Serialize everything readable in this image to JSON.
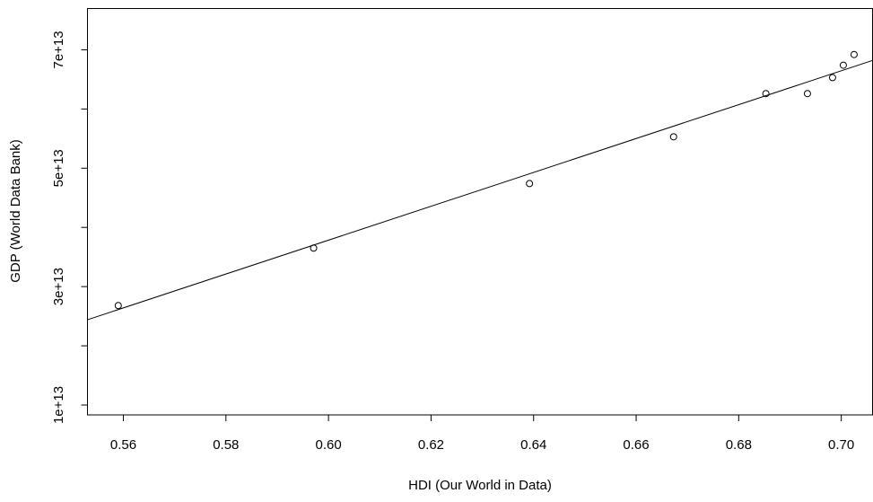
{
  "chart_data": {
    "type": "scatter",
    "x_label": "HDI (Our World in Data)",
    "y_label": "GDP (World Data Bank)",
    "x": [
      0.559,
      0.5971,
      0.6392,
      0.6673,
      0.6853,
      0.6934,
      0.6983,
      0.7004,
      0.7025
    ],
    "values": [
      26800000000000.0,
      36500000000000.0,
      47400000000000.0,
      55300000000000.0,
      62600000000000.0,
      62600000000000.0,
      65300000000000.0,
      67400000000000.0,
      69200000000000.0
    ],
    "color": "#000000",
    "fit": {
      "x": [
        0.553,
        0.7061
      ],
      "values": [
        24400000000000.0,
        68200000000000.0
      ]
    },
    "xlim": [
      0.553,
      0.7061
    ],
    "ylim": [
      8330000000000.0,
      76970000000000.0
    ],
    "xticks": [
      0.56,
      0.58,
      {
        "value": 0.6,
        "label": "0.60"
      },
      0.62,
      0.64,
      0.66,
      0.68,
      {
        "value": 0.7,
        "label": "0.70"
      }
    ],
    "yticks": [
      {
        "value": 10000000000000.0,
        "label": "1e+13"
      },
      {
        "value": 30000000000000.0,
        "label": "3e+13"
      },
      {
        "value": 50000000000000.0,
        "label": "5e+13"
      },
      {
        "value": 70000000000000.0,
        "label": "7e+13"
      }
    ],
    "y_minor_ticks": [
      20000000000000.0,
      40000000000000.0,
      60000000000000.0
    ],
    "grid": false
  }
}
